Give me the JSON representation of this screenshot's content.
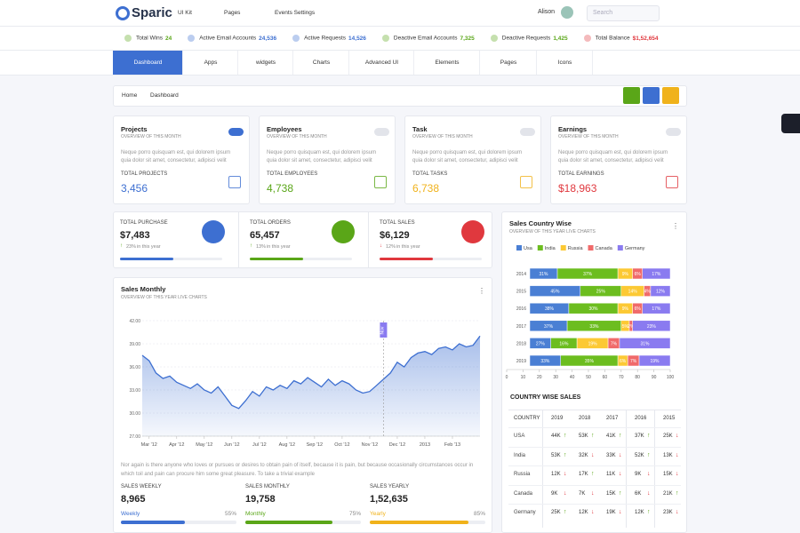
{
  "header": {
    "brand": "Sparic",
    "menu": [
      "UI Kit",
      "Pages",
      "Events Settings"
    ],
    "user": "Alison",
    "search_placeholder": "Search"
  },
  "ticker": [
    {
      "label": "Total Wins",
      "value": "24",
      "color": "#5aa618"
    },
    {
      "label": "Active Email Accounts",
      "value": "24,536",
      "color": "#3d6fd1"
    },
    {
      "label": "Active Requests",
      "value": "14,526",
      "color": "#3d6fd1"
    },
    {
      "label": "Deactive Email Accounts",
      "value": "7,325",
      "color": "#5aa618"
    },
    {
      "label": "Deactive Requests",
      "value": "1,425",
      "color": "#5aa618"
    },
    {
      "label": "Total Balance",
      "value": "$1,52,654",
      "color": "#e0383e"
    }
  ],
  "nav": [
    "Dashboard",
    "Apps",
    "widgets",
    "Charts",
    "Advanced UI",
    "Elements",
    "Pages",
    "Icons"
  ],
  "breadcrumb": [
    "Home",
    "Dashboard"
  ],
  "cards": [
    {
      "title": "Projects",
      "subtitle": "OVERVIEW OF THIS MONTH",
      "text": "Neque porro quisquam est, qui dolorem ipsum quia dolor sit amet, consectetur, adipisci velit",
      "metric_label": "TOTAL PROJECTS",
      "metric": "3,456",
      "color": "#3d6fd1"
    },
    {
      "title": "Employees",
      "subtitle": "OVERVIEW OF THIS MONTH",
      "text": "Neque porro quisquam est, qui dolorem ipsum quia dolor sit amet, consectetur, adipisci velit",
      "metric_label": "TOTAL EMPLOYEES",
      "metric": "4,738",
      "color": "#5aa618"
    },
    {
      "title": "Task",
      "subtitle": "OVERVIEW OF THIS MONTH",
      "text": "Neque porro quisquam est, qui dolorem ipsum quia dolor sit amet, consectetur, adipisci velit",
      "metric_label": "TOTAL TASKS",
      "metric": "6,738",
      "color": "#f0b21b"
    },
    {
      "title": "Earnings",
      "subtitle": "OVERVIEW OF THIS MONTH",
      "text": "Neque porro quisquam est, qui dolorem ipsum quia dolor sit amet, consectetur, adipisci velit",
      "metric_label": "TOTAL EARNINGS",
      "metric": "$18,963",
      "color": "#e0383e"
    }
  ],
  "stats": [
    {
      "label": "TOTAL PURCHASE",
      "value": "$7,483",
      "change": "23%",
      "note": "in this year",
      "trend": "up",
      "color": "#3d6fd1"
    },
    {
      "label": "TOTAL ORDERS",
      "value": "65,457",
      "change": "13%",
      "note": "in this year",
      "trend": "up",
      "color": "#5aa618"
    },
    {
      "label": "TOTAL SALES",
      "value": "$6,129",
      "change": "12%",
      "note": "in this year",
      "trend": "down",
      "color": "#e0383e"
    }
  ],
  "chart_data": [
    {
      "type": "line",
      "title": "Sales Monthly",
      "subtitle": "OVERVIEW OF THIS YEAR LIVE CHARTS",
      "color": "#3d6fd1",
      "x": [
        0,
        1,
        2,
        3,
        4,
        5,
        6,
        7,
        8,
        9,
        10,
        11,
        12,
        13,
        14,
        15,
        16,
        17,
        18,
        19,
        20,
        21,
        22,
        23,
        24,
        25,
        26,
        27,
        28,
        29,
        30,
        31,
        32,
        33,
        34,
        35,
        36,
        37,
        38,
        39,
        40,
        41,
        42,
        43,
        44,
        45,
        46,
        47,
        48,
        49
      ],
      "values": [
        37.5,
        36.8,
        35.2,
        34.5,
        34.8,
        34.0,
        33.6,
        33.2,
        33.8,
        33.0,
        32.6,
        33.4,
        32.2,
        31.0,
        30.6,
        31.6,
        32.8,
        32.2,
        33.4,
        33.0,
        33.6,
        33.2,
        34.2,
        33.8,
        34.6,
        34.0,
        33.4,
        34.4,
        33.6,
        34.2,
        33.8,
        33.0,
        32.6,
        32.8,
        33.6,
        34.4,
        35.2,
        36.6,
        36.0,
        37.2,
        37.8,
        38.0,
        37.6,
        38.4,
        38.6,
        38.2,
        39.0,
        38.6,
        38.8,
        40.0
      ],
      "xlim": [
        0,
        49
      ],
      "xticks": [
        {
          "value": 1,
          "label": "Mar '12"
        },
        {
          "value": 5,
          "label": "Apr '12"
        },
        {
          "value": 9,
          "label": "May '12"
        },
        {
          "value": 13,
          "label": "Jun '12"
        },
        {
          "value": 17,
          "label": "Jul '12"
        },
        {
          "value": 21,
          "label": "Aug '12"
        },
        {
          "value": 25,
          "label": "Sep '12"
        },
        {
          "value": 29,
          "label": "Oct '12"
        },
        {
          "value": 33,
          "label": "Nov '12"
        },
        {
          "value": 37,
          "label": "Dec '12"
        },
        {
          "value": 41,
          "label": "2013"
        },
        {
          "value": 45,
          "label": "Feb '13"
        }
      ],
      "ylim": [
        27,
        42
      ],
      "yticks": [
        {
          "value": 27,
          "label": "27.00"
        },
        {
          "value": 30,
          "label": "30.00"
        },
        {
          "value": 33,
          "label": "33.00"
        },
        {
          "value": 36,
          "label": "36.00"
        },
        {
          "value": 39,
          "label": "39.00"
        },
        {
          "value": 42,
          "label": "42.00"
        }
      ],
      "grid": true,
      "annotation": {
        "x": 35,
        "label": "Nov"
      }
    },
    {
      "type": "stacked_bar",
      "title": "Sales Country Wise",
      "subtitle": "OVERVIEW OF THIS YEAR LIVE CHARTS",
      "legend": "top",
      "categories": [
        "2014",
        "2015",
        "2016",
        "2017",
        "2018",
        "2019"
      ],
      "xlim": [
        0,
        100
      ],
      "xticks": [
        0,
        10,
        20,
        30,
        40,
        50,
        60,
        70,
        80,
        90,
        100
      ],
      "series": [
        {
          "name": "Usa",
          "color": "#4a7fd4",
          "values": [
            31,
            45,
            38,
            37,
            27,
            33
          ],
          "value_labels": [
            "31%",
            "45%",
            "38%",
            "37%",
            "27%",
            "33%"
          ]
        },
        {
          "name": "India",
          "color": "#6cbd1f",
          "values": [
            37,
            25,
            30,
            33,
            16,
            35
          ],
          "value_labels": [
            "37%",
            "25%",
            "30%",
            "33%",
            "16%",
            "35%"
          ]
        },
        {
          "name": "Russia",
          "color": "#fcc934",
          "values": [
            9,
            14,
            9,
            5,
            19,
            6
          ],
          "value_labels": [
            "9%",
            "14%",
            "9%",
            "5%",
            "19%",
            "6%"
          ]
        },
        {
          "name": "Canada",
          "color": "#f06a6a",
          "values": [
            6,
            4,
            6,
            2,
            7,
            7
          ],
          "value_labels": [
            "6%",
            "4%",
            "6%",
            "2%",
            "7%",
            "7%"
          ]
        },
        {
          "name": "Germany",
          "color": "#8a7bf0",
          "values": [
            17,
            12,
            17,
            23,
            31,
            19
          ],
          "value_labels": [
            "17%",
            "12%",
            "17%",
            "23%",
            "31%",
            "19%"
          ]
        }
      ]
    }
  ],
  "description": "Nor again is there anyone who loves or pursues or desires to obtain pain of itself, because it is pain, but because occasionally circumstances occur in which toil and pain can procure him some great pleasure. To take a trivial example",
  "sales_summary": [
    {
      "label": "SALES WEEKLY",
      "value": "8,965",
      "period": "Weekly",
      "percent": 55,
      "percent_label": "55%",
      "color": "#3d6fd1"
    },
    {
      "label": "SALES MONTHLY",
      "value": "19,758",
      "period": "Monthly",
      "percent": 75,
      "percent_label": "75%",
      "color": "#5aa618"
    },
    {
      "label": "SALES YEARLY",
      "value": "1,52,635",
      "period": "Yearly",
      "percent": 85,
      "percent_label": "85%",
      "color": "#f0b21b"
    }
  ],
  "country_table": {
    "title": "COUNTRY WISE SALES",
    "columns": [
      "COUNTRY",
      "2019",
      "2018",
      "2017",
      "2016",
      "2015"
    ],
    "rows": [
      {
        "country": "USA",
        "cells": [
          {
            "text": "44K",
            "trend": "up"
          },
          {
            "text": "53K",
            "trend": "up"
          },
          {
            "text": "41K",
            "trend": "up"
          },
          {
            "text": "37K",
            "trend": "up"
          },
          {
            "text": "25K",
            "trend": "down"
          }
        ]
      },
      {
        "country": "India",
        "cells": [
          {
            "text": "53K",
            "trend": "up"
          },
          {
            "text": "32K",
            "trend": "down"
          },
          {
            "text": "33K",
            "trend": "down"
          },
          {
            "text": "52K",
            "trend": "up"
          },
          {
            "text": "13K",
            "trend": "down"
          }
        ]
      },
      {
        "country": "Russia",
        "cells": [
          {
            "text": "12K",
            "trend": "down"
          },
          {
            "text": "17K",
            "trend": "up"
          },
          {
            "text": "11K",
            "trend": "down"
          },
          {
            "text": "9K",
            "trend": "down"
          },
          {
            "text": "15K",
            "trend": "down"
          }
        ]
      },
      {
        "country": "Canada",
        "cells": [
          {
            "text": "9K",
            "trend": "down"
          },
          {
            "text": "7K",
            "trend": "down"
          },
          {
            "text": "15K",
            "trend": "up"
          },
          {
            "text": "6K",
            "trend": "down"
          },
          {
            "text": "21K",
            "trend": "up"
          }
        ]
      },
      {
        "country": "Germany",
        "cells": [
          {
            "text": "25K",
            "trend": "up"
          },
          {
            "text": "12K",
            "trend": "down"
          },
          {
            "text": "19K",
            "trend": "down"
          },
          {
            "text": "12K",
            "trend": "up"
          },
          {
            "text": "23K",
            "trend": "down"
          }
        ]
      }
    ]
  }
}
